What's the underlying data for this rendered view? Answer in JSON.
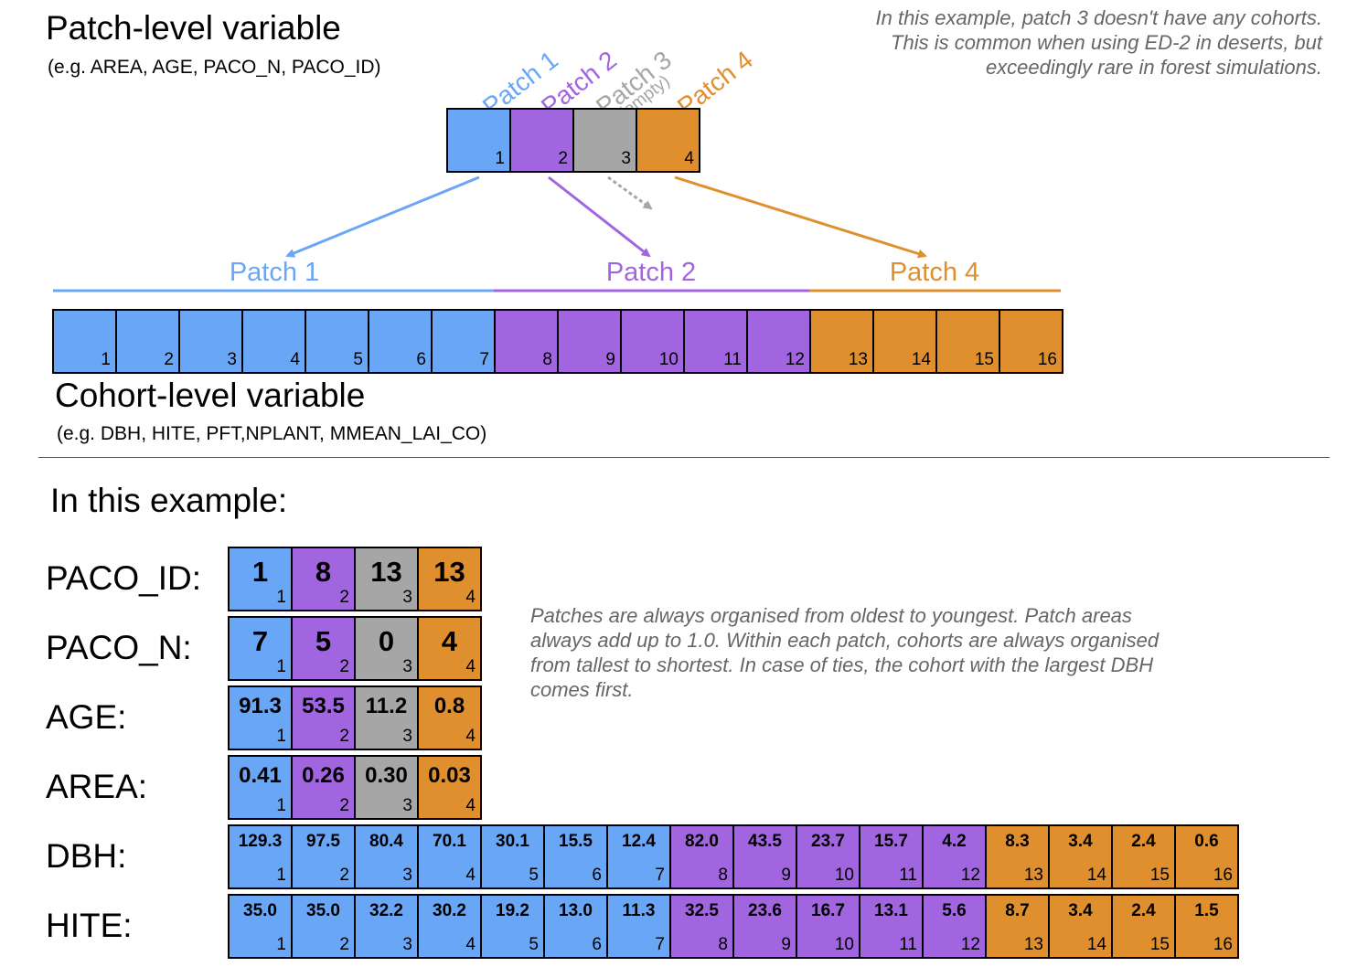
{
  "header": {
    "patch_title": "Patch-level variable",
    "patch_sub": "(e.g. AREA, AGE, PACO_N, PACO_ID)",
    "cohort_title": "Cohort-level variable",
    "cohort_sub": "(e.g. DBH, HITE, PFT,NPLANT, MMEAN_LAI_CO)",
    "example_title": "In this example:"
  },
  "notes": {
    "top": [
      "In this example, patch 3 doesn't have any cohorts.",
      "This is common when using ED-2 in deserts, but",
      "exceedingly rare in forest simulations."
    ],
    "middle": [
      "Patches are always organised from oldest to youngest. Patch areas",
      "always add up to 1.0.  Within each patch, cohorts are always organised",
      "from tallest to shortest.  In case of ties, the cohort with the largest DBH",
      "comes first."
    ]
  },
  "colors": {
    "blue": "#6aa6f6",
    "purple": "#a165df",
    "gray": "#a6a6a6",
    "orange": "#e08f2e"
  },
  "patch_labels": {
    "p1": "Patch 1",
    "p2": "Patch 2",
    "p3": "Patch 3",
    "p3_sub": "(empty)",
    "p4": "Patch 4"
  },
  "patch_indices": [
    "1",
    "2",
    "3",
    "4"
  ],
  "brace_labels": {
    "p1": "Patch 1",
    "p2": "Patch 2",
    "p4": "Patch 4"
  },
  "cohort_indices": [
    "1",
    "2",
    "3",
    "4",
    "5",
    "6",
    "7",
    "8",
    "9",
    "10",
    "11",
    "12",
    "13",
    "14",
    "15",
    "16"
  ],
  "rows": {
    "paco_id": {
      "label": "PACO_ID:",
      "values": [
        "1",
        "8",
        "13",
        "13"
      ]
    },
    "paco_n": {
      "label": "PACO_N:",
      "values": [
        "7",
        "5",
        "0",
        "4"
      ]
    },
    "age": {
      "label": "AGE:",
      "values": [
        "91.3",
        "53.5",
        "11.2",
        "0.8"
      ]
    },
    "area": {
      "label": "AREA:",
      "values": [
        "0.41",
        "0.26",
        "0.30",
        "0.03"
      ]
    },
    "dbh": {
      "label": "DBH:",
      "values": [
        "129.3",
        "97.5",
        "80.4",
        "70.1",
        "30.1",
        "15.5",
        "12.4",
        "82.0",
        "43.5",
        "23.7",
        "15.7",
        "4.2",
        "8.3",
        "3.4",
        "2.4",
        "0.6"
      ]
    },
    "hite": {
      "label": "HITE:",
      "values": [
        "35.0",
        "35.0",
        "32.2",
        "30.2",
        "19.2",
        "13.0",
        "11.3",
        "32.5",
        "23.6",
        "16.7",
        "13.1",
        "5.6",
        "8.7",
        "3.4",
        "2.4",
        "1.5"
      ]
    }
  }
}
